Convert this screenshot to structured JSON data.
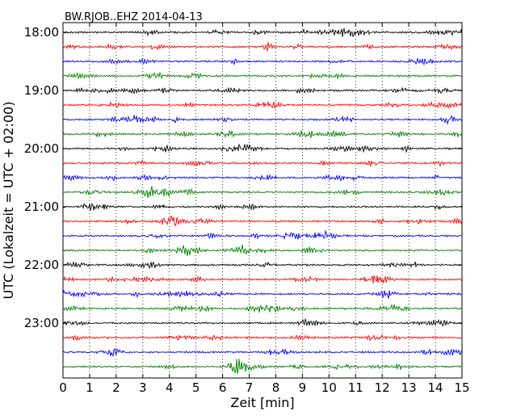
{
  "chart_data": {
    "type": "line",
    "title": "BW.RJOB..EHZ 2014-04-13",
    "xlabel": "Zeit  [min]",
    "ylabel": "UTC (Lokalzeit = UTC + 02:00)",
    "xlim": [
      0,
      15
    ],
    "x_ticks": [
      0,
      1,
      2,
      3,
      4,
      5,
      6,
      7,
      8,
      9,
      10,
      11,
      12,
      13,
      14,
      15
    ],
    "x_tick_labels": [
      "0",
      "1",
      "2",
      "3",
      "4",
      "5",
      "6",
      "7",
      "8",
      "9",
      "10",
      "11",
      "12",
      "13",
      "14",
      "15"
    ],
    "y_tick_labels": [
      "18:00",
      "19:00",
      "20:00",
      "21:00",
      "22:00",
      "23:00"
    ],
    "rows_per_hour": 4,
    "row_start_times": [
      "18:00",
      "18:15",
      "18:30",
      "18:45",
      "19:00",
      "19:15",
      "19:30",
      "19:45",
      "20:00",
      "20:15",
      "20:30",
      "20:45",
      "21:00",
      "21:15",
      "21:30",
      "21:45",
      "22:00",
      "22:15",
      "22:30",
      "22:45",
      "23:00",
      "23:15",
      "23:30",
      "23:45"
    ],
    "trace_colors": [
      "#000000",
      "#ff0000",
      "#0000ff",
      "#008000"
    ],
    "grid": "vertical dotted at each minute",
    "trace_description": "continuous low-amplitude seismic noise with small bursts"
  }
}
